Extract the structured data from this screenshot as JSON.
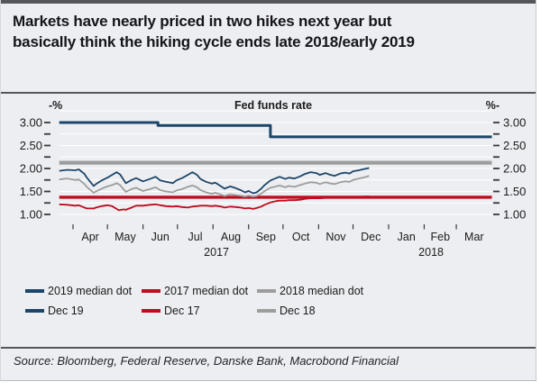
{
  "card": {
    "title_line1": "Markets have nearly priced in two hikes next year but",
    "title_line2": "basically think the hiking cycle ends late 2018/early 2019",
    "source": "Source: Bloomberg, Federal Reserve, Danske Bank, Macrobond Financial"
  },
  "colors": {
    "navy": "#1b4669",
    "red": "#c00c1e",
    "gray": "#9d9d9d",
    "background": "#edeef2",
    "rule": "#54575a",
    "grid": "#ffffff",
    "tick": "#3a3a3a",
    "axis_text": "#1c1c1c"
  },
  "legend": {
    "rows": [
      [
        {
          "label": "2019 median dot",
          "color": "navy"
        },
        {
          "label": "2017 median dot",
          "color": "red"
        },
        {
          "label": "2018 median dot",
          "color": "gray"
        }
      ],
      [
        {
          "label": "Dec 19",
          "color": "navy"
        },
        {
          "label": "Dec 17",
          "color": "red"
        },
        {
          "label": "Dec 18",
          "color": "gray"
        }
      ]
    ]
  },
  "chart_data": {
    "type": "line",
    "title": "Fed funds rate",
    "left_axis_header": "-%",
    "right_axis_header": "%-",
    "unit": "%",
    "ylim": [
      1.0,
      3.25
    ],
    "yticks_major": [
      3.0,
      2.5,
      2.0,
      1.5,
      1.0
    ],
    "ytick_minor_step": 0.25,
    "x_domain": [
      "2017-03-20",
      "2018-04-01"
    ],
    "x_month_labels": [
      "Apr",
      "May",
      "Jun",
      "Jul",
      "Aug",
      "Sep",
      "Oct",
      "Nov",
      "Dec",
      "Jan",
      "Feb",
      "Mar"
    ],
    "x_year_labels": [
      {
        "label": "2017",
        "center_date": "2017-08-04"
      },
      {
        "label": "2018",
        "center_date": "2018-02-07"
      }
    ],
    "series": [
      {
        "name": "2018 median dot",
        "color": "gray",
        "width": 4.2,
        "points": [
          [
            "2017-03-20",
            2.125
          ],
          [
            "2018-04-01",
            2.125
          ]
        ]
      },
      {
        "name": "2017 median dot",
        "color": "red",
        "width": 3.4,
        "points": [
          [
            "2017-03-20",
            1.375
          ],
          [
            "2018-04-01",
            1.375
          ]
        ]
      },
      {
        "name": "2019 median dot",
        "color": "navy",
        "width": 3.0,
        "points": [
          [
            "2017-03-20",
            3.0
          ],
          [
            "2017-06-14",
            3.0
          ],
          [
            "2017-06-14",
            2.9375
          ],
          [
            "2017-09-20",
            2.9375
          ],
          [
            "2017-09-20",
            2.6875
          ],
          [
            "2018-04-01",
            2.6875
          ]
        ]
      },
      {
        "name": "Dec 18",
        "color": "gray",
        "width": 1.8,
        "points": [
          [
            "2017-03-20",
            1.76
          ],
          [
            "2017-03-27",
            1.78
          ],
          [
            "2017-04-03",
            1.75
          ],
          [
            "2017-04-06",
            1.76
          ],
          [
            "2017-04-11",
            1.66
          ],
          [
            "2017-04-13",
            1.6
          ],
          [
            "2017-04-19",
            1.47
          ],
          [
            "2017-04-21",
            1.5
          ],
          [
            "2017-04-26",
            1.56
          ],
          [
            "2017-05-01",
            1.61
          ],
          [
            "2017-05-05",
            1.64
          ],
          [
            "2017-05-09",
            1.68
          ],
          [
            "2017-05-12",
            1.64
          ],
          [
            "2017-05-17",
            1.49
          ],
          [
            "2017-05-22",
            1.55
          ],
          [
            "2017-05-26",
            1.58
          ],
          [
            "2017-06-01",
            1.51
          ],
          [
            "2017-06-07",
            1.55
          ],
          [
            "2017-06-12",
            1.59
          ],
          [
            "2017-06-16",
            1.53
          ],
          [
            "2017-06-21",
            1.5
          ],
          [
            "2017-06-27",
            1.48
          ],
          [
            "2017-06-30",
            1.52
          ],
          [
            "2017-07-05",
            1.55
          ],
          [
            "2017-07-10",
            1.6
          ],
          [
            "2017-07-14",
            1.63
          ],
          [
            "2017-07-18",
            1.59
          ],
          [
            "2017-07-21",
            1.53
          ],
          [
            "2017-07-26",
            1.48
          ],
          [
            "2017-07-31",
            1.45
          ],
          [
            "2017-08-03",
            1.47
          ],
          [
            "2017-08-08",
            1.43
          ],
          [
            "2017-08-11",
            1.4
          ],
          [
            "2017-08-16",
            1.44
          ],
          [
            "2017-08-21",
            1.42
          ],
          [
            "2017-08-25",
            1.41
          ],
          [
            "2017-08-29",
            1.39
          ],
          [
            "2017-09-01",
            1.41
          ],
          [
            "2017-09-05",
            1.39
          ],
          [
            "2017-09-08",
            1.4
          ],
          [
            "2017-09-12",
            1.45
          ],
          [
            "2017-09-15",
            1.51
          ],
          [
            "2017-09-20",
            1.58
          ],
          [
            "2017-09-25",
            1.61
          ],
          [
            "2017-09-28",
            1.63
          ],
          [
            "2017-10-03",
            1.59
          ],
          [
            "2017-10-06",
            1.62
          ],
          [
            "2017-10-11",
            1.6
          ],
          [
            "2017-10-16",
            1.64
          ],
          [
            "2017-10-20",
            1.67
          ],
          [
            "2017-10-25",
            1.7
          ],
          [
            "2017-10-30",
            1.69
          ],
          [
            "2017-11-02",
            1.66
          ],
          [
            "2017-11-07",
            1.7
          ],
          [
            "2017-11-10",
            1.68
          ],
          [
            "2017-11-15",
            1.66
          ],
          [
            "2017-11-20",
            1.7
          ],
          [
            "2017-11-24",
            1.72
          ],
          [
            "2017-11-28",
            1.71
          ],
          [
            "2017-12-01",
            1.75
          ],
          [
            "2017-12-06",
            1.78
          ],
          [
            "2017-12-11",
            1.81
          ],
          [
            "2017-12-15",
            1.84
          ]
        ]
      },
      {
        "name": "Dec 17",
        "color": "red",
        "width": 1.8,
        "points": [
          [
            "2017-03-20",
            1.22
          ],
          [
            "2017-03-27",
            1.21
          ],
          [
            "2017-04-03",
            1.19
          ],
          [
            "2017-04-06",
            1.2
          ],
          [
            "2017-04-11",
            1.15
          ],
          [
            "2017-04-13",
            1.13
          ],
          [
            "2017-04-19",
            1.13
          ],
          [
            "2017-04-21",
            1.15
          ],
          [
            "2017-04-26",
            1.18
          ],
          [
            "2017-05-01",
            1.2
          ],
          [
            "2017-05-05",
            1.18
          ],
          [
            "2017-05-09",
            1.12
          ],
          [
            "2017-05-11",
            1.09
          ],
          [
            "2017-05-15",
            1.11
          ],
          [
            "2017-05-17",
            1.1
          ],
          [
            "2017-05-22",
            1.15
          ],
          [
            "2017-05-26",
            1.19
          ],
          [
            "2017-06-01",
            1.19
          ],
          [
            "2017-06-07",
            1.21
          ],
          [
            "2017-06-12",
            1.22
          ],
          [
            "2017-06-16",
            1.2
          ],
          [
            "2017-06-21",
            1.18
          ],
          [
            "2017-06-27",
            1.17
          ],
          [
            "2017-06-30",
            1.18
          ],
          [
            "2017-07-05",
            1.16
          ],
          [
            "2017-07-10",
            1.15
          ],
          [
            "2017-07-14",
            1.17
          ],
          [
            "2017-07-18",
            1.18
          ],
          [
            "2017-07-21",
            1.19
          ],
          [
            "2017-07-26",
            1.19
          ],
          [
            "2017-07-31",
            1.18
          ],
          [
            "2017-08-03",
            1.19
          ],
          [
            "2017-08-08",
            1.17
          ],
          [
            "2017-08-11",
            1.15
          ],
          [
            "2017-08-16",
            1.17
          ],
          [
            "2017-08-21",
            1.16
          ],
          [
            "2017-08-25",
            1.15
          ],
          [
            "2017-08-29",
            1.13
          ],
          [
            "2017-09-01",
            1.14
          ],
          [
            "2017-09-05",
            1.12
          ],
          [
            "2017-09-08",
            1.14
          ],
          [
            "2017-09-12",
            1.17
          ],
          [
            "2017-09-15",
            1.21
          ],
          [
            "2017-09-20",
            1.26
          ],
          [
            "2017-09-25",
            1.29
          ],
          [
            "2017-09-28",
            1.3
          ],
          [
            "2017-10-03",
            1.3
          ],
          [
            "2017-10-06",
            1.31
          ],
          [
            "2017-10-11",
            1.31
          ],
          [
            "2017-10-16",
            1.32
          ],
          [
            "2017-10-20",
            1.34
          ],
          [
            "2017-10-25",
            1.35
          ],
          [
            "2017-10-30",
            1.35
          ],
          [
            "2017-11-02",
            1.35
          ],
          [
            "2017-11-07",
            1.36
          ],
          [
            "2017-11-10",
            1.36
          ],
          [
            "2017-11-15",
            1.36
          ],
          [
            "2017-11-20",
            1.37
          ],
          [
            "2017-11-24",
            1.37
          ],
          [
            "2017-11-28",
            1.37
          ],
          [
            "2017-12-01",
            1.38
          ],
          [
            "2017-12-06",
            1.38
          ],
          [
            "2017-12-11",
            1.39
          ],
          [
            "2017-12-15",
            1.39
          ]
        ]
      },
      {
        "name": "Dec 19",
        "color": "navy",
        "width": 1.8,
        "points": [
          [
            "2017-03-20",
            1.95
          ],
          [
            "2017-03-27",
            1.97
          ],
          [
            "2017-04-03",
            1.96
          ],
          [
            "2017-04-06",
            1.98
          ],
          [
            "2017-04-11",
            1.88
          ],
          [
            "2017-04-13",
            1.8
          ],
          [
            "2017-04-19",
            1.62
          ],
          [
            "2017-04-21",
            1.66
          ],
          [
            "2017-04-26",
            1.74
          ],
          [
            "2017-05-01",
            1.8
          ],
          [
            "2017-05-05",
            1.86
          ],
          [
            "2017-05-09",
            1.92
          ],
          [
            "2017-05-12",
            1.87
          ],
          [
            "2017-05-17",
            1.68
          ],
          [
            "2017-05-22",
            1.75
          ],
          [
            "2017-05-26",
            1.79
          ],
          [
            "2017-06-01",
            1.72
          ],
          [
            "2017-06-07",
            1.77
          ],
          [
            "2017-06-12",
            1.82
          ],
          [
            "2017-06-16",
            1.74
          ],
          [
            "2017-06-21",
            1.71
          ],
          [
            "2017-06-27",
            1.68
          ],
          [
            "2017-06-30",
            1.74
          ],
          [
            "2017-07-05",
            1.79
          ],
          [
            "2017-07-10",
            1.86
          ],
          [
            "2017-07-14",
            1.92
          ],
          [
            "2017-07-18",
            1.86
          ],
          [
            "2017-07-21",
            1.77
          ],
          [
            "2017-07-26",
            1.71
          ],
          [
            "2017-07-31",
            1.67
          ],
          [
            "2017-08-03",
            1.69
          ],
          [
            "2017-08-08",
            1.61
          ],
          [
            "2017-08-11",
            1.56
          ],
          [
            "2017-08-16",
            1.61
          ],
          [
            "2017-08-21",
            1.57
          ],
          [
            "2017-08-25",
            1.53
          ],
          [
            "2017-08-29",
            1.48
          ],
          [
            "2017-09-01",
            1.51
          ],
          [
            "2017-09-05",
            1.46
          ],
          [
            "2017-09-08",
            1.48
          ],
          [
            "2017-09-12",
            1.56
          ],
          [
            "2017-09-15",
            1.64
          ],
          [
            "2017-09-20",
            1.74
          ],
          [
            "2017-09-25",
            1.79
          ],
          [
            "2017-09-28",
            1.82
          ],
          [
            "2017-10-03",
            1.77
          ],
          [
            "2017-10-06",
            1.8
          ],
          [
            "2017-10-11",
            1.78
          ],
          [
            "2017-10-16",
            1.83
          ],
          [
            "2017-10-20",
            1.88
          ],
          [
            "2017-10-25",
            1.92
          ],
          [
            "2017-10-30",
            1.9
          ],
          [
            "2017-11-02",
            1.86
          ],
          [
            "2017-11-07",
            1.9
          ],
          [
            "2017-11-10",
            1.87
          ],
          [
            "2017-11-15",
            1.84
          ],
          [
            "2017-11-20",
            1.89
          ],
          [
            "2017-11-24",
            1.91
          ],
          [
            "2017-11-28",
            1.89
          ],
          [
            "2017-12-01",
            1.94
          ],
          [
            "2017-12-06",
            1.96
          ],
          [
            "2017-12-11",
            1.99
          ],
          [
            "2017-12-15",
            2.01
          ]
        ]
      }
    ]
  }
}
